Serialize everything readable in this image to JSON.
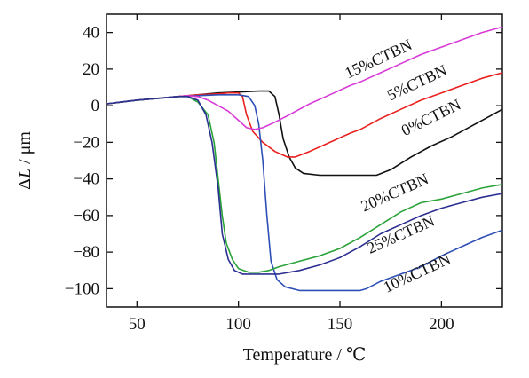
{
  "chart_data": {
    "type": "line",
    "xlabel": "Temperature / ℃",
    "ylabel_parts": [
      "Δ",
      "L",
      " / μm"
    ],
    "xlim": [
      35,
      230
    ],
    "ylim": [
      -110,
      50
    ],
    "x_ticks": [
      50,
      100,
      150,
      200
    ],
    "y_ticks": [
      -100,
      -80,
      -60,
      -40,
      -20,
      0,
      20,
      40
    ],
    "grid": false,
    "legend": "none",
    "series": [
      {
        "name": "0%CTBN",
        "color": "#111111",
        "label_angle": -26,
        "points": [
          [
            35,
            1
          ],
          [
            50,
            3
          ],
          [
            60,
            4
          ],
          [
            70,
            5
          ],
          [
            80,
            6
          ],
          [
            90,
            7
          ],
          [
            100,
            7.5
          ],
          [
            110,
            8
          ],
          [
            115,
            8
          ],
          [
            118,
            5
          ],
          [
            120,
            -5
          ],
          [
            122,
            -18
          ],
          [
            125,
            -28
          ],
          [
            128,
            -34
          ],
          [
            132,
            -37
          ],
          [
            140,
            -38
          ],
          [
            150,
            -38
          ],
          [
            160,
            -38
          ],
          [
            168,
            -38
          ],
          [
            175,
            -35
          ],
          [
            185,
            -28
          ],
          [
            195,
            -22
          ],
          [
            205,
            -17
          ],
          [
            215,
            -11
          ],
          [
            225,
            -5
          ],
          [
            230,
            -2
          ]
        ]
      },
      {
        "name": "5%CTBN",
        "color": "#e8211f",
        "label_angle": -25,
        "points": [
          [
            35,
            1
          ],
          [
            50,
            3
          ],
          [
            60,
            4
          ],
          [
            70,
            5
          ],
          [
            80,
            6
          ],
          [
            90,
            6.5
          ],
          [
            95,
            7
          ],
          [
            100,
            7
          ],
          [
            102,
            5
          ],
          [
            104,
            -5
          ],
          [
            107,
            -14
          ],
          [
            112,
            -20
          ],
          [
            118,
            -25
          ],
          [
            124,
            -28
          ],
          [
            128,
            -28
          ],
          [
            135,
            -25
          ],
          [
            145,
            -20
          ],
          [
            155,
            -15
          ],
          [
            160,
            -13
          ],
          [
            170,
            -7
          ],
          [
            180,
            -2
          ],
          [
            190,
            3
          ],
          [
            200,
            7
          ],
          [
            210,
            11
          ],
          [
            220,
            15
          ],
          [
            230,
            18
          ]
        ]
      },
      {
        "name": "10%CTBN",
        "color": "#2e4fb5",
        "label_angle": -25,
        "points": [
          [
            35,
            1
          ],
          [
            50,
            3
          ],
          [
            60,
            4
          ],
          [
            70,
            5
          ],
          [
            80,
            5.5
          ],
          [
            90,
            6
          ],
          [
            100,
            6
          ],
          [
            105,
            5
          ],
          [
            108,
            0
          ],
          [
            110,
            -10
          ],
          [
            112,
            -30
          ],
          [
            114,
            -60
          ],
          [
            116,
            -85
          ],
          [
            119,
            -95
          ],
          [
            123,
            -99
          ],
          [
            130,
            -101
          ],
          [
            140,
            -101
          ],
          [
            150,
            -101
          ],
          [
            160,
            -101
          ],
          [
            163,
            -100
          ],
          [
            170,
            -96
          ],
          [
            180,
            -92
          ],
          [
            190,
            -88
          ],
          [
            200,
            -82
          ],
          [
            210,
            -77
          ],
          [
            220,
            -72
          ],
          [
            230,
            -68
          ]
        ]
      },
      {
        "name": "15%CTBN",
        "color": "#d83ad6",
        "label_angle": -23,
        "points": [
          [
            35,
            1
          ],
          [
            50,
            3
          ],
          [
            60,
            4
          ],
          [
            70,
            5
          ],
          [
            75,
            5.5
          ],
          [
            80,
            5
          ],
          [
            85,
            3
          ],
          [
            90,
            0
          ],
          [
            95,
            -3
          ],
          [
            100,
            -8
          ],
          [
            104,
            -12
          ],
          [
            108,
            -13
          ],
          [
            112,
            -12
          ],
          [
            118,
            -9
          ],
          [
            125,
            -5
          ],
          [
            135,
            1
          ],
          [
            145,
            6
          ],
          [
            155,
            11
          ],
          [
            160,
            13
          ],
          [
            170,
            18
          ],
          [
            180,
            23
          ],
          [
            190,
            28
          ],
          [
            200,
            32
          ],
          [
            210,
            36
          ],
          [
            220,
            40
          ],
          [
            230,
            43
          ]
        ]
      },
      {
        "name": "20%CTBN",
        "color": "#2ba23a",
        "label_angle": -24,
        "points": [
          [
            35,
            1
          ],
          [
            50,
            3
          ],
          [
            60,
            4
          ],
          [
            70,
            5
          ],
          [
            75,
            5
          ],
          [
            80,
            2
          ],
          [
            85,
            -5
          ],
          [
            88,
            -20
          ],
          [
            90,
            -40
          ],
          [
            92,
            -60
          ],
          [
            94,
            -75
          ],
          [
            97,
            -84
          ],
          [
            100,
            -89
          ],
          [
            105,
            -91
          ],
          [
            110,
            -91
          ],
          [
            115,
            -90
          ],
          [
            120,
            -88
          ],
          [
            130,
            -85
          ],
          [
            140,
            -82
          ],
          [
            150,
            -78
          ],
          [
            160,
            -72
          ],
          [
            170,
            -65
          ],
          [
            180,
            -58
          ],
          [
            190,
            -53
          ],
          [
            200,
            -51
          ],
          [
            210,
            -48
          ],
          [
            220,
            -45
          ],
          [
            230,
            -43
          ]
        ]
      },
      {
        "name": "25%CTBN",
        "color": "#2b2f91",
        "label_angle": -24,
        "points": [
          [
            35,
            1
          ],
          [
            50,
            3
          ],
          [
            60,
            4
          ],
          [
            70,
            5
          ],
          [
            75,
            5
          ],
          [
            80,
            3
          ],
          [
            84,
            -5
          ],
          [
            87,
            -20
          ],
          [
            90,
            -45
          ],
          [
            92,
            -70
          ],
          [
            95,
            -84
          ],
          [
            98,
            -90
          ],
          [
            102,
            -92
          ],
          [
            110,
            -92
          ],
          [
            120,
            -92
          ],
          [
            130,
            -90
          ],
          [
            140,
            -87
          ],
          [
            150,
            -83
          ],
          [
            160,
            -77
          ],
          [
            170,
            -70
          ],
          [
            180,
            -65
          ],
          [
            190,
            -60
          ],
          [
            200,
            -56
          ],
          [
            210,
            -53
          ],
          [
            220,
            -50
          ],
          [
            230,
            -48
          ]
        ]
      }
    ],
    "labels": [
      {
        "text": "15%CTBN",
        "series": 3,
        "x": 170,
        "y": 23,
        "angle": -25
      },
      {
        "text": "5%CTBN",
        "series": 1,
        "x": 189,
        "y": 10,
        "angle": -25
      },
      {
        "text": "0%CTBN",
        "series": 0,
        "x": 196,
        "y": -9,
        "angle": -26
      },
      {
        "text": "20%CTBN",
        "series": 4,
        "x": 178,
        "y": -50,
        "angle": -24
      },
      {
        "text": "25%CTBN",
        "series": 5,
        "x": 181,
        "y": -73,
        "angle": -24
      },
      {
        "text": "10%CTBN",
        "series": 2,
        "x": 189,
        "y": -94,
        "angle": -25
      }
    ]
  }
}
